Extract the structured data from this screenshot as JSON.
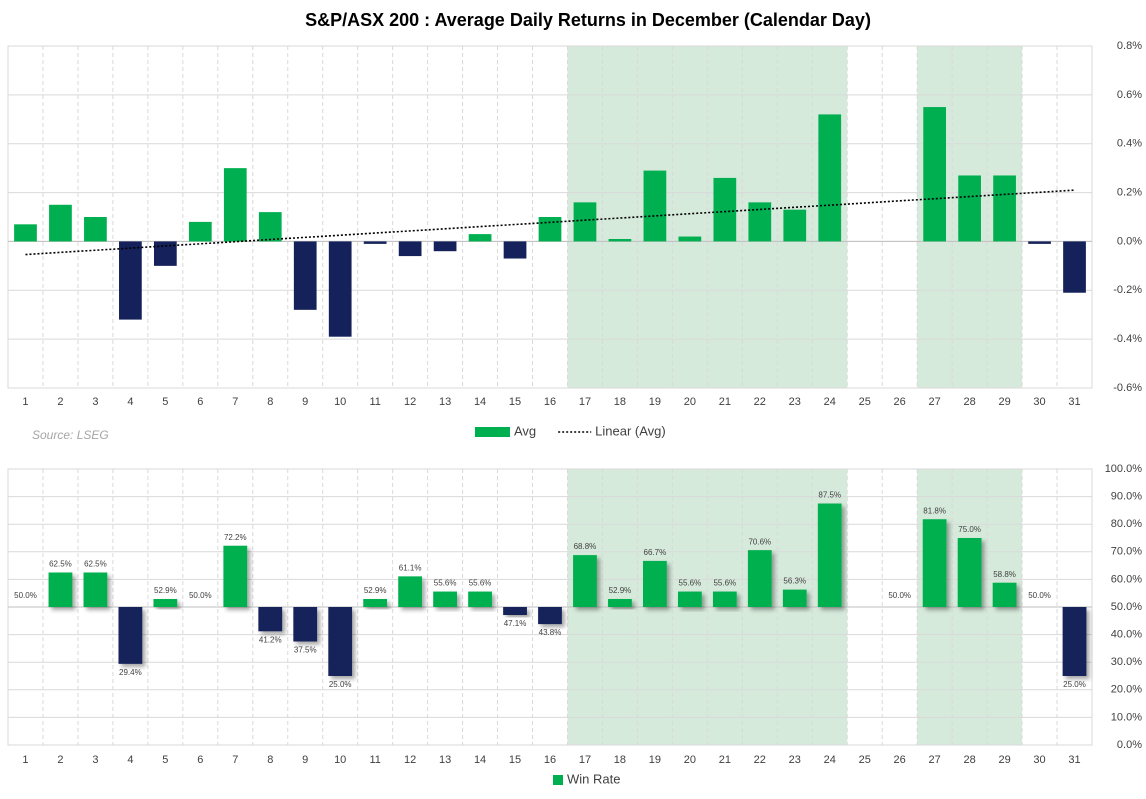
{
  "chart_data": [
    {
      "type": "bar",
      "title": "S&P/ASX 200 : Average Daily Returns in December (Calendar Day)",
      "source": "Source: LSEG",
      "categories": [
        "1",
        "2",
        "3",
        "4",
        "5",
        "6",
        "7",
        "8",
        "9",
        "10",
        "11",
        "12",
        "13",
        "14",
        "15",
        "16",
        "17",
        "18",
        "19",
        "20",
        "21",
        "22",
        "23",
        "24",
        "25",
        "26",
        "27",
        "28",
        "29",
        "30",
        "31"
      ],
      "series": [
        {
          "name": "Avg",
          "color": "#00b050",
          "negative_color": "#14215a",
          "values": [
            0.07,
            0.15,
            0.1,
            -0.32,
            -0.1,
            0.08,
            0.3,
            0.12,
            -0.28,
            -0.39,
            -0.01,
            -0.06,
            -0.04,
            0.03,
            -0.07,
            0.1,
            0.16,
            0.01,
            0.29,
            0.02,
            0.26,
            0.16,
            0.13,
            0.52,
            null,
            null,
            0.55,
            0.27,
            0.27,
            -0.01,
            -0.21
          ]
        }
      ],
      "trendline": {
        "name": "Linear (Avg)",
        "color": "#000000"
      },
      "highlights": [
        [
          "17",
          "24"
        ],
        [
          "27",
          "29"
        ]
      ],
      "highlight_color": "#d6eadb",
      "ylim": [
        -0.6,
        0.8
      ],
      "yticks": [
        {
          "value": -0.6,
          "label": "-0.6%"
        },
        {
          "value": -0.4,
          "label": "-0.4%"
        },
        {
          "value": -0.2,
          "label": "-0.2%"
        },
        {
          "value": 0,
          "label": "0.0%"
        },
        {
          "value": 0.2,
          "label": "0.2%"
        },
        {
          "value": 0.4,
          "label": "0.4%"
        },
        {
          "value": 0.6,
          "label": "0.6%"
        },
        {
          "value": 0.8,
          "label": "0.8%"
        }
      ],
      "grid": true
    },
    {
      "type": "bar",
      "categories": [
        "1",
        "2",
        "3",
        "4",
        "5",
        "6",
        "7",
        "8",
        "9",
        "10",
        "11",
        "12",
        "13",
        "14",
        "15",
        "16",
        "17",
        "18",
        "19",
        "20",
        "21",
        "22",
        "23",
        "24",
        "25",
        "26",
        "27",
        "28",
        "29",
        "30",
        "31"
      ],
      "series": [
        {
          "name": "Win Rate",
          "color": "#00b050",
          "negative_color": "#14215a",
          "values": [
            50,
            62.5,
            62.5,
            29.4,
            52.9,
            50,
            72.2,
            41.2,
            37.5,
            25,
            52.9,
            61.1,
            55.6,
            55.6,
            47.1,
            43.8,
            68.8,
            52.9,
            66.7,
            55.6,
            55.6,
            70.6,
            56.3,
            87.5,
            null,
            50,
            81.8,
            75,
            58.8,
            50,
            25
          ],
          "value_labels": [
            "50.0%",
            "62.5%",
            "62.5%",
            "29.4%",
            "52.9%",
            "50.0%",
            "72.2%",
            "41.2%",
            "37.5%",
            "25.0%",
            "52.9%",
            "61.1%",
            "55.6%",
            "55.6%",
            "47.1%",
            "43.8%",
            "68.8%",
            "52.9%",
            "66.7%",
            "55.6%",
            "55.6%",
            "70.6%",
            "56.3%",
            "87.5%",
            null,
            "50.0%",
            "81.8%",
            "75.0%",
            "58.8%",
            "50.0%",
            "25.0%"
          ]
        }
      ],
      "base": 50,
      "highlights": [
        [
          "17",
          "24"
        ],
        [
          "27",
          "29"
        ]
      ],
      "highlight_color": "#d6eadb",
      "ylim": [
        0,
        100
      ],
      "yticks": [
        {
          "value": 0,
          "label": "0.0%"
        },
        {
          "value": 10,
          "label": "10.0%"
        },
        {
          "value": 20,
          "label": "20.0%"
        },
        {
          "value": 30,
          "label": "30.0%"
        },
        {
          "value": 40,
          "label": "40.0%"
        },
        {
          "value": 50,
          "label": "50.0%"
        },
        {
          "value": 60,
          "label": "60.0%"
        },
        {
          "value": 70,
          "label": "70.0%"
        },
        {
          "value": 80,
          "label": "80.0%"
        },
        {
          "value": 90,
          "label": "90.0%"
        },
        {
          "value": 100,
          "label": "100.0%"
        }
      ],
      "grid": true
    }
  ]
}
